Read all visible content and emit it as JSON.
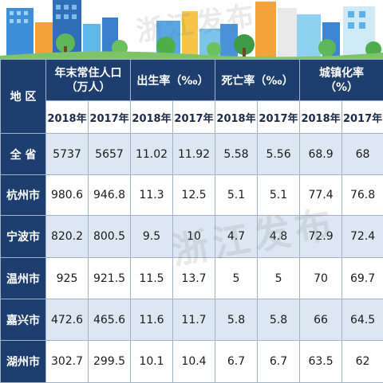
{
  "watermark": "浙江发布",
  "header": {
    "region_label": "地 区",
    "groups": [
      {
        "title": "年末常住人口\n（万人）"
      },
      {
        "title": "出生率（‰）"
      },
      {
        "title": "死亡率（‰）"
      },
      {
        "title": "城镇化率\n（%）"
      }
    ],
    "years": [
      "2018年",
      "2017年"
    ]
  },
  "rows": [
    {
      "region": "全 省",
      "values": [
        "5737",
        "5657",
        "11.02",
        "11.92",
        "5.58",
        "5.56",
        "68.9",
        "68"
      ]
    },
    {
      "region": "杭州市",
      "values": [
        "980.6",
        "946.8",
        "11.3",
        "12.5",
        "5.1",
        "5.1",
        "77.4",
        "76.8"
      ]
    },
    {
      "region": "宁波市",
      "values": [
        "820.2",
        "800.5",
        "9.5",
        "10",
        "4.7",
        "4.8",
        "72.9",
        "72.4"
      ]
    },
    {
      "region": "温州市",
      "values": [
        "925",
        "921.5",
        "11.5",
        "13.7",
        "5",
        "5",
        "70",
        "69.7"
      ]
    },
    {
      "region": "嘉兴市",
      "values": [
        "472.6",
        "465.6",
        "11.6",
        "11.7",
        "5.8",
        "5.8",
        "66",
        "64.5"
      ]
    },
    {
      "region": "湖州市",
      "values": [
        "302.7",
        "299.5",
        "10.1",
        "10.4",
        "6.7",
        "6.7",
        "63.5",
        "62"
      ]
    }
  ],
  "colors": {
    "header": "#1d3e6e",
    "stripe": "#dde7f1",
    "border": "#9fb2c8"
  }
}
